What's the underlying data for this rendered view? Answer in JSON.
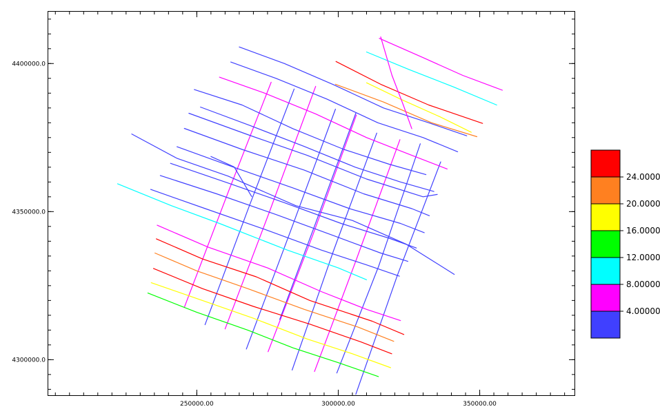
{
  "chart_data": {
    "type": "line",
    "x_ticks": [
      {
        "value": 250000,
        "label": "250000.00"
      },
      {
        "value": 300000,
        "label": "300000.00"
      },
      {
        "value": 350000,
        "label": "350000.00"
      }
    ],
    "y_ticks": [
      {
        "value": 4300000,
        "label": "4300000.0"
      },
      {
        "value": 4350000,
        "label": "4350000.0"
      },
      {
        "value": 4400000,
        "label": "4400000.0"
      }
    ],
    "xlim": [
      197500,
      383500
    ],
    "ylim": [
      4288000,
      4417500
    ],
    "grid": false,
    "legend_position": "right",
    "legend": [
      {
        "color": "#ff0000",
        "label": "24.0000"
      },
      {
        "color": "#ff8020",
        "label": "20.0000"
      },
      {
        "color": "#ffff00",
        "label": "16.0000"
      },
      {
        "color": "#00ff00",
        "label": "12.0000"
      },
      {
        "color": "#00ffff",
        "label": "8.00000"
      },
      {
        "color": "#ff00ff",
        "label": "4.00000"
      },
      {
        "color": "#4040ff",
        "label": ""
      }
    ],
    "series": [
      {
        "color": "#ff00ff",
        "points": [
          [
            245600,
            4317700
          ],
          [
            261400,
            4357300
          ],
          [
            276300,
            4393700
          ]
        ]
      },
      {
        "color": "#4040ff",
        "points": [
          [
            252900,
            4311800
          ],
          [
            268500,
            4351800
          ],
          [
            284400,
            4391400
          ]
        ]
      },
      {
        "color": "#ff00ff",
        "points": [
          [
            260000,
            4310400
          ],
          [
            275500,
            4349500
          ],
          [
            292000,
            4392300
          ]
        ]
      },
      {
        "color": "#4040ff",
        "points": [
          [
            267500,
            4303600
          ],
          [
            283100,
            4343300
          ],
          [
            299000,
            4384600
          ]
        ]
      },
      {
        "color": "#ff00ff",
        "points": [
          [
            275200,
            4302700
          ],
          [
            291000,
            4342100
          ],
          [
            306400,
            4382600
          ]
        ]
      },
      {
        "color": "#4040ff",
        "points": [
          [
            283700,
            4296500
          ],
          [
            298300,
            4336700
          ],
          [
            313600,
            4376500
          ]
        ]
      },
      {
        "color": "#ff00ff",
        "points": [
          [
            291600,
            4296000
          ],
          [
            306400,
            4333800
          ],
          [
            321800,
            4374300
          ]
        ]
      },
      {
        "color": "#4040ff",
        "points": [
          [
            299500,
            4295500
          ],
          [
            314300,
            4331600
          ],
          [
            329000,
            4372900
          ]
        ]
      },
      {
        "color": "#4040ff",
        "points": [
          [
            306200,
            4288300
          ],
          [
            320900,
            4328500
          ],
          [
            336200,
            4366800
          ]
        ]
      },
      {
        "color": "#4040ff",
        "points": [
          [
            279300,
            4313600
          ],
          [
            291800,
            4345600
          ],
          [
            306200,
            4383200
          ]
        ]
      },
      {
        "color": "#4040ff",
        "points": [
          [
            255000,
            4368600
          ],
          [
            263200,
            4365100
          ],
          [
            269400,
            4355100
          ]
        ]
      },
      {
        "color": "#4040ff",
        "points": [
          [
            227000,
            4376200
          ],
          [
            243000,
            4368000
          ],
          [
            261000,
            4362000
          ],
          [
            285000,
            4352000
          ],
          [
            305000,
            4347000
          ],
          [
            324000,
            4339000
          ],
          [
            341000,
            4328800
          ]
        ]
      },
      {
        "color": "#00ffff",
        "points": [
          [
            222000,
            4359400
          ],
          [
            241000,
            4352000
          ],
          [
            258000,
            4346000
          ],
          [
            282000,
            4337000
          ],
          [
            300000,
            4331000
          ],
          [
            310000,
            4327000
          ]
        ]
      },
      {
        "color": "#ff00ff",
        "points": [
          [
            236000,
            4345400
          ],
          [
            254000,
            4338000
          ],
          [
            275000,
            4331000
          ],
          [
            294000,
            4323000
          ],
          [
            310000,
            4317000
          ],
          [
            322000,
            4313200
          ]
        ]
      },
      {
        "color": "#ff0000",
        "points": [
          [
            235700,
            4340800
          ],
          [
            252000,
            4334000
          ],
          [
            271000,
            4328000
          ],
          [
            290000,
            4320000
          ],
          [
            312000,
            4313000
          ],
          [
            323200,
            4308500
          ]
        ]
      },
      {
        "color": "#ff8020",
        "points": [
          [
            235200,
            4336000
          ],
          [
            250000,
            4330000
          ],
          [
            268000,
            4324000
          ],
          [
            288000,
            4317000
          ],
          [
            307000,
            4311000
          ],
          [
            319600,
            4306200
          ]
        ]
      },
      {
        "color": "#ff0000",
        "points": [
          [
            234700,
            4330800
          ],
          [
            252000,
            4324000
          ],
          [
            270000,
            4318000
          ],
          [
            290000,
            4312000
          ],
          [
            308000,
            4306000
          ],
          [
            318900,
            4302000
          ]
        ]
      },
      {
        "color": "#ffff00",
        "points": [
          [
            233900,
            4326000
          ],
          [
            252000,
            4320000
          ],
          [
            270000,
            4314000
          ],
          [
            289000,
            4307000
          ],
          [
            305000,
            4302000
          ],
          [
            318500,
            4297300
          ]
        ]
      },
      {
        "color": "#00ff00",
        "points": [
          [
            232700,
            4322500
          ],
          [
            250000,
            4316000
          ],
          [
            268000,
            4310000
          ],
          [
            284000,
            4304000
          ],
          [
            300000,
            4299000
          ],
          [
            314200,
            4294300
          ]
        ]
      },
      {
        "color": "#4040ff",
        "points": [
          [
            247200,
            4383200
          ],
          [
            268000,
            4376000
          ],
          [
            289000,
            4369000
          ],
          [
            310000,
            4361000
          ],
          [
            330000,
            4355000
          ],
          [
            335000,
            4355800
          ]
        ]
      },
      {
        "color": "#4040ff",
        "points": [
          [
            245600,
            4378100
          ],
          [
            266000,
            4371000
          ],
          [
            288000,
            4364000
          ],
          [
            309000,
            4356000
          ],
          [
            326000,
            4351000
          ],
          [
            332200,
            4348600
          ]
        ]
      },
      {
        "color": "#4040ff",
        "points": [
          [
            243000,
            4371900
          ],
          [
            263000,
            4365000
          ],
          [
            284000,
            4358000
          ],
          [
            304000,
            4351000
          ],
          [
            322000,
            4346000
          ],
          [
            330400,
            4342900
          ]
        ]
      },
      {
        "color": "#4040ff",
        "points": [
          [
            240700,
            4366300
          ],
          [
            260000,
            4360000
          ],
          [
            281000,
            4353000
          ],
          [
            301000,
            4346000
          ],
          [
            318000,
            4341000
          ],
          [
            327600,
            4337700
          ]
        ]
      },
      {
        "color": "#4040ff",
        "points": [
          [
            237100,
            4362200
          ],
          [
            257000,
            4356000
          ],
          [
            278000,
            4349000
          ],
          [
            298000,
            4342000
          ],
          [
            315000,
            4336000
          ],
          [
            324600,
            4333200
          ]
        ]
      },
      {
        "color": "#4040ff",
        "points": [
          [
            233700,
            4357500
          ],
          [
            253000,
            4351000
          ],
          [
            274000,
            4344000
          ],
          [
            294000,
            4337000
          ],
          [
            310000,
            4332000
          ],
          [
            321600,
            4328200
          ]
        ]
      },
      {
        "color": "#4040ff",
        "points": [
          [
            249100,
            4391200
          ],
          [
            266000,
            4386000
          ],
          [
            284000,
            4378000
          ],
          [
            302000,
            4371000
          ],
          [
            318000,
            4366000
          ],
          [
            331000,
            4362500
          ]
        ]
      },
      {
        "color": "#4040ff",
        "points": [
          [
            251300,
            4385300
          ],
          [
            269000,
            4379000
          ],
          [
            288000,
            4372000
          ],
          [
            306000,
            4365000
          ],
          [
            322000,
            4360000
          ],
          [
            333800,
            4356800
          ]
        ]
      },
      {
        "color": "#ff00ff",
        "points": [
          [
            258000,
            4395400
          ],
          [
            274000,
            4390000
          ],
          [
            292000,
            4383000
          ],
          [
            310000,
            4375000
          ],
          [
            326000,
            4369000
          ],
          [
            338500,
            4364400
          ]
        ]
      },
      {
        "color": "#4040ff",
        "points": [
          [
            262000,
            4400500
          ],
          [
            278000,
            4395000
          ],
          [
            296000,
            4388000
          ],
          [
            314000,
            4380000
          ],
          [
            330000,
            4375000
          ],
          [
            342200,
            4370200
          ]
        ]
      },
      {
        "color": "#4040ff",
        "points": [
          [
            265000,
            4405600
          ],
          [
            281000,
            4400000
          ],
          [
            298000,
            4393000
          ],
          [
            316000,
            4385000
          ],
          [
            332000,
            4380000
          ],
          [
            345400,
            4375600
          ]
        ]
      },
      {
        "color": "#ff8020",
        "points": [
          [
            299000,
            4393000
          ],
          [
            316000,
            4387000
          ],
          [
            333000,
            4380000
          ],
          [
            349000,
            4375300
          ]
        ]
      },
      {
        "color": "#ff0000",
        "points": [
          [
            299200,
            4400700
          ],
          [
            315000,
            4393000
          ],
          [
            332000,
            4386000
          ],
          [
            351000,
            4379800
          ]
        ]
      },
      {
        "color": "#00ffff",
        "points": [
          [
            310000,
            4403900
          ],
          [
            325000,
            4398000
          ],
          [
            341000,
            4392000
          ],
          [
            356000,
            4386000
          ]
        ]
      },
      {
        "color": "#ff00ff",
        "points": [
          [
            314500,
            4408500
          ],
          [
            330000,
            4402000
          ],
          [
            344000,
            4396000
          ],
          [
            358000,
            4391000
          ]
        ]
      },
      {
        "color": "#ffff00",
        "points": [
          [
            310000,
            4393500
          ],
          [
            322000,
            4388000
          ],
          [
            336000,
            4382000
          ],
          [
            347000,
            4376800
          ]
        ]
      },
      {
        "color": "#ff00ff",
        "points": [
          [
            315000,
            4409000
          ],
          [
            319000,
            4396000
          ],
          [
            323000,
            4386000
          ],
          [
            326000,
            4378000
          ]
        ]
      }
    ]
  }
}
